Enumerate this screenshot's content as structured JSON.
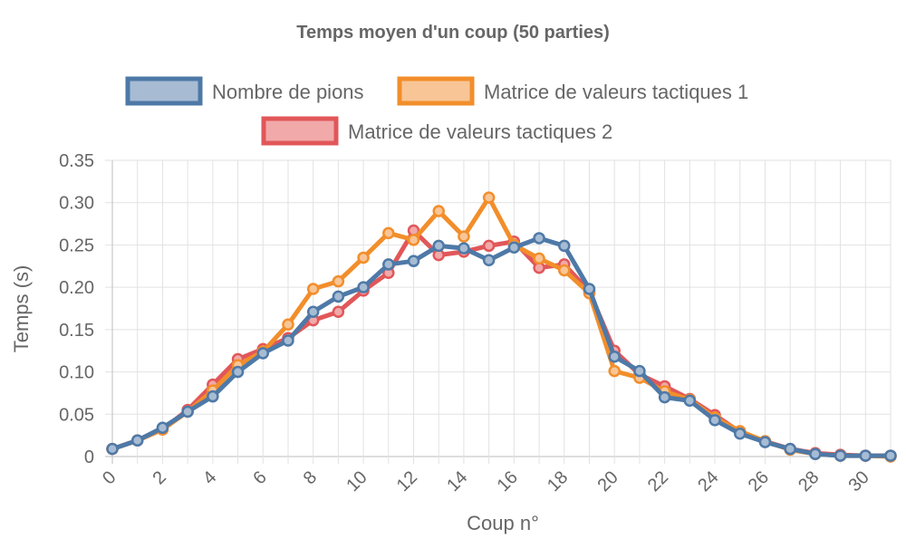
{
  "chart_data": {
    "type": "line",
    "title": "Temps moyen d'un coup (50 parties)",
    "xlabel": "Coup n°",
    "ylabel": "Temps (s)",
    "ylim": [
      0,
      0.35
    ],
    "yticks": [
      0,
      0.05,
      0.1,
      0.15,
      0.2,
      0.25,
      0.3,
      0.35
    ],
    "ytick_labels": [
      "0",
      "0.05",
      "0.10",
      "0.15",
      "0.20",
      "0.25",
      "0.30",
      "0.35"
    ],
    "x": [
      0,
      1,
      2,
      3,
      4,
      5,
      6,
      7,
      8,
      9,
      10,
      11,
      12,
      13,
      14,
      15,
      16,
      17,
      18,
      19,
      20,
      21,
      22,
      23,
      24,
      25,
      26,
      27,
      28,
      29,
      30,
      31
    ],
    "xtick_labels": [
      "0",
      "2",
      "4",
      "6",
      "8",
      "10",
      "12",
      "14",
      "16",
      "18",
      "20",
      "22",
      "24",
      "26",
      "28",
      "30"
    ],
    "grid": true,
    "legend_position": "top",
    "series": [
      {
        "name": "Matrice de valeurs tactiques 2",
        "color": "#e15759",
        "fill": "#f1a9aa",
        "values": [
          0.009,
          0.019,
          0.032,
          0.055,
          0.085,
          0.115,
          0.127,
          0.14,
          0.161,
          0.171,
          0.196,
          0.217,
          0.267,
          0.238,
          0.242,
          0.249,
          0.254,
          0.223,
          0.227,
          0.195,
          0.125,
          0.097,
          0.083,
          0.068,
          0.049,
          0.029,
          0.018,
          0.009,
          0.004,
          0.002,
          0.001,
          0.001
        ]
      },
      {
        "name": "Matrice de valeurs tactiques 1",
        "color": "#f28e2b",
        "fill": "#f8c597",
        "values": [
          0.009,
          0.019,
          0.032,
          0.053,
          0.078,
          0.108,
          0.124,
          0.156,
          0.198,
          0.207,
          0.235,
          0.264,
          0.256,
          0.29,
          0.26,
          0.306,
          0.25,
          0.234,
          0.22,
          0.193,
          0.101,
          0.093,
          0.077,
          0.067,
          0.046,
          0.03,
          0.018,
          0.008,
          0.003,
          0.001,
          0.001,
          0.0
        ]
      },
      {
        "name": "Nombre de pions",
        "color": "#4e79a7",
        "fill": "#a7bcd3",
        "values": [
          0.009,
          0.019,
          0.034,
          0.053,
          0.071,
          0.1,
          0.122,
          0.137,
          0.171,
          0.189,
          0.2,
          0.227,
          0.231,
          0.249,
          0.246,
          0.232,
          0.247,
          0.258,
          0.249,
          0.198,
          0.118,
          0.101,
          0.07,
          0.066,
          0.043,
          0.027,
          0.017,
          0.009,
          0.003,
          0.001,
          0.001,
          0.001
        ]
      }
    ]
  },
  "legend": {
    "items": [
      {
        "label": "Nombre de pions",
        "color": "#4e79a7",
        "fill": "#a7bcd3"
      },
      {
        "label": "Matrice de valeurs tactiques 1",
        "color": "#f28e2b",
        "fill": "#f8c597"
      },
      {
        "label": "Matrice de valeurs tactiques 2",
        "color": "#e15759",
        "fill": "#f1a9aa"
      }
    ]
  }
}
